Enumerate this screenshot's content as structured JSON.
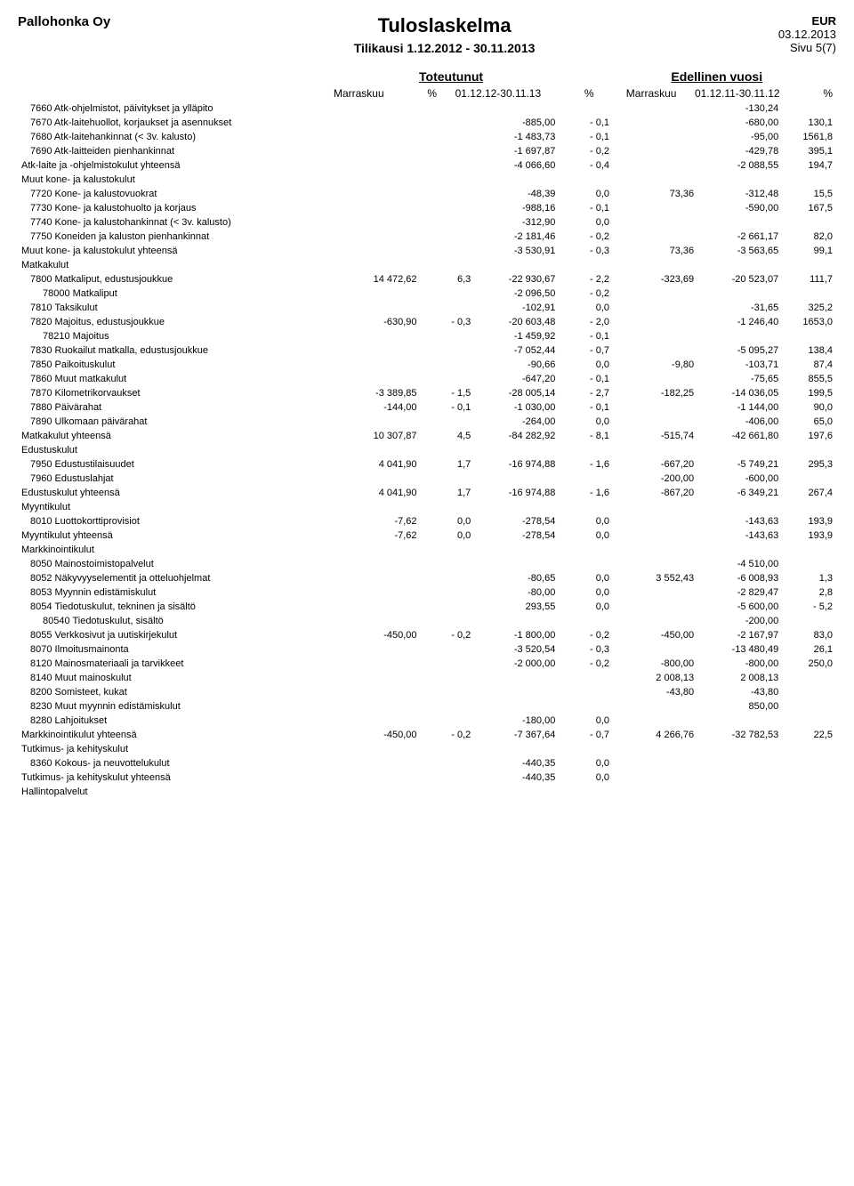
{
  "meta": {
    "company": "Pallohonka Oy",
    "title": "Tuloslaskelma",
    "period": "Tilikausi 1.12.2012 - 30.11.2013",
    "currency": "EUR",
    "date": "03.12.2013",
    "page": "Sivu 5(7)",
    "group_current": "Toteutunut",
    "group_prev": "Edellinen vuosi",
    "sub_c1": "Marraskuu",
    "sub_c2": "%",
    "sub_c3": "01.12.12-30.11.13",
    "sub_c4": "%",
    "sub_p1": "Marraskuu",
    "sub_p2": "01.12.11-30.11.12",
    "sub_p3": "%"
  },
  "style": {
    "background": "#ffffff",
    "text_color": "#000000",
    "font_family": "Arial",
    "title_fontsize": 22,
    "body_fontsize": 11
  },
  "rows": [
    {
      "indent": 1,
      "label": "7660 Atk-ohjelmistot, päivitykset ja ylläpito",
      "c1": "",
      "c2": "",
      "c3": "",
      "c4": "",
      "p1": "",
      "p2": "-130,24",
      "p3": ""
    },
    {
      "indent": 1,
      "label": "7670 Atk-laitehuollot, korjaukset ja asennukset",
      "c1": "",
      "c2": "",
      "c3": "-885,00",
      "c4": "- 0,1",
      "p1": "",
      "p2": "-680,00",
      "p3": "130,1"
    },
    {
      "indent": 1,
      "label": "7680 Atk-laitehankinnat (< 3v. kalusto)",
      "c1": "",
      "c2": "",
      "c3": "-1 483,73",
      "c4": "- 0,1",
      "p1": "",
      "p2": "-95,00",
      "p3": "1561,8"
    },
    {
      "indent": 1,
      "label": "7690 Atk-laitteiden pienhankinnat",
      "c1": "",
      "c2": "",
      "c3": "-1 697,87",
      "c4": "- 0,2",
      "p1": "",
      "p2": "-429,78",
      "p3": "395,1"
    },
    {
      "indent": 0,
      "label": "Atk-laite ja -ohjelmistokulut yhteensä",
      "c1": "",
      "c2": "",
      "c3": "-4 066,60",
      "c4": "- 0,4",
      "p1": "",
      "p2": "-2 088,55",
      "p3": "194,7"
    },
    {
      "indent": 0,
      "label": "Muut kone- ja kalustokulut",
      "c1": "",
      "c2": "",
      "c3": "",
      "c4": "",
      "p1": "",
      "p2": "",
      "p3": ""
    },
    {
      "indent": 1,
      "label": "7720 Kone- ja kalustovuokrat",
      "c1": "",
      "c2": "",
      "c3": "-48,39",
      "c4": "0,0",
      "p1": "73,36",
      "p2": "-312,48",
      "p3": "15,5"
    },
    {
      "indent": 1,
      "label": "7730 Kone- ja kalustohuolto ja korjaus",
      "c1": "",
      "c2": "",
      "c3": "-988,16",
      "c4": "- 0,1",
      "p1": "",
      "p2": "-590,00",
      "p3": "167,5"
    },
    {
      "indent": 1,
      "label": "7740 Kone- ja kalustohankinnat (< 3v. kalusto)",
      "c1": "",
      "c2": "",
      "c3": "-312,90",
      "c4": "0,0",
      "p1": "",
      "p2": "",
      "p3": ""
    },
    {
      "indent": 1,
      "label": "7750 Koneiden ja kaluston pienhankinnat",
      "c1": "",
      "c2": "",
      "c3": "-2 181,46",
      "c4": "- 0,2",
      "p1": "",
      "p2": "-2 661,17",
      "p3": "82,0"
    },
    {
      "indent": 0,
      "label": "Muut kone- ja kalustokulut yhteensä",
      "c1": "",
      "c2": "",
      "c3": "-3 530,91",
      "c4": "- 0,3",
      "p1": "73,36",
      "p2": "-3 563,65",
      "p3": "99,1"
    },
    {
      "indent": 0,
      "label": "Matkakulut",
      "c1": "",
      "c2": "",
      "c3": "",
      "c4": "",
      "p1": "",
      "p2": "",
      "p3": ""
    },
    {
      "indent": 1,
      "label": "7800 Matkaliput, edustusjoukkue",
      "c1": "14 472,62",
      "c2": "6,3",
      "c3": "-22 930,67",
      "c4": "- 2,2",
      "p1": "-323,69",
      "p2": "-20 523,07",
      "p3": "111,7"
    },
    {
      "indent": 2,
      "label": "78000 Matkaliput",
      "c1": "",
      "c2": "",
      "c3": "-2 096,50",
      "c4": "- 0,2",
      "p1": "",
      "p2": "",
      "p3": ""
    },
    {
      "indent": 1,
      "label": "7810 Taksikulut",
      "c1": "",
      "c2": "",
      "c3": "-102,91",
      "c4": "0,0",
      "p1": "",
      "p2": "-31,65",
      "p3": "325,2"
    },
    {
      "indent": 1,
      "label": "7820 Majoitus, edustusjoukkue",
      "c1": "-630,90",
      "c2": "- 0,3",
      "c3": "-20 603,48",
      "c4": "- 2,0",
      "p1": "",
      "p2": "-1 246,40",
      "p3": "1653,0"
    },
    {
      "indent": 2,
      "label": "78210 Majoitus",
      "c1": "",
      "c2": "",
      "c3": "-1 459,92",
      "c4": "- 0,1",
      "p1": "",
      "p2": "",
      "p3": ""
    },
    {
      "indent": 1,
      "label": "7830 Ruokailut matkalla, edustusjoukkue",
      "c1": "",
      "c2": "",
      "c3": "-7 052,44",
      "c4": "- 0,7",
      "p1": "",
      "p2": "-5 095,27",
      "p3": "138,4"
    },
    {
      "indent": 1,
      "label": "7850 Paikoituskulut",
      "c1": "",
      "c2": "",
      "c3": "-90,66",
      "c4": "0,0",
      "p1": "-9,80",
      "p2": "-103,71",
      "p3": "87,4"
    },
    {
      "indent": 1,
      "label": "7860 Muut matkakulut",
      "c1": "",
      "c2": "",
      "c3": "-647,20",
      "c4": "- 0,1",
      "p1": "",
      "p2": "-75,65",
      "p3": "855,5"
    },
    {
      "indent": 1,
      "label": "7870 Kilometrikorvaukset",
      "c1": "-3 389,85",
      "c2": "- 1,5",
      "c3": "-28 005,14",
      "c4": "- 2,7",
      "p1": "-182,25",
      "p2": "-14 036,05",
      "p3": "199,5"
    },
    {
      "indent": 1,
      "label": "7880 Päivärahat",
      "c1": "-144,00",
      "c2": "- 0,1",
      "c3": "-1 030,00",
      "c4": "- 0,1",
      "p1": "",
      "p2": "-1 144,00",
      "p3": "90,0"
    },
    {
      "indent": 1,
      "label": "7890 Ulkomaan päivärahat",
      "c1": "",
      "c2": "",
      "c3": "-264,00",
      "c4": "0,0",
      "p1": "",
      "p2": "-406,00",
      "p3": "65,0"
    },
    {
      "indent": 0,
      "label": "Matkakulut yhteensä",
      "c1": "10 307,87",
      "c2": "4,5",
      "c3": "-84 282,92",
      "c4": "- 8,1",
      "p1": "-515,74",
      "p2": "-42 661,80",
      "p3": "197,6"
    },
    {
      "indent": 0,
      "label": "Edustuskulut",
      "c1": "",
      "c2": "",
      "c3": "",
      "c4": "",
      "p1": "",
      "p2": "",
      "p3": ""
    },
    {
      "indent": 1,
      "label": "7950 Edustustilaisuudet",
      "c1": "4 041,90",
      "c2": "1,7",
      "c3": "-16 974,88",
      "c4": "- 1,6",
      "p1": "-667,20",
      "p2": "-5 749,21",
      "p3": "295,3"
    },
    {
      "indent": 1,
      "label": "7960 Edustuslahjat",
      "c1": "",
      "c2": "",
      "c3": "",
      "c4": "",
      "p1": "-200,00",
      "p2": "-600,00",
      "p3": ""
    },
    {
      "indent": 0,
      "label": "Edustuskulut yhteensä",
      "c1": "4 041,90",
      "c2": "1,7",
      "c3": "-16 974,88",
      "c4": "- 1,6",
      "p1": "-867,20",
      "p2": "-6 349,21",
      "p3": "267,4"
    },
    {
      "indent": 0,
      "label": "Myyntikulut",
      "c1": "",
      "c2": "",
      "c3": "",
      "c4": "",
      "p1": "",
      "p2": "",
      "p3": ""
    },
    {
      "indent": 1,
      "label": "8010 Luottokorttiprovisiot",
      "c1": "-7,62",
      "c2": "0,0",
      "c3": "-278,54",
      "c4": "0,0",
      "p1": "",
      "p2": "-143,63",
      "p3": "193,9"
    },
    {
      "indent": 0,
      "label": "Myyntikulut yhteensä",
      "c1": "-7,62",
      "c2": "0,0",
      "c3": "-278,54",
      "c4": "0,0",
      "p1": "",
      "p2": "-143,63",
      "p3": "193,9"
    },
    {
      "indent": 0,
      "label": "Markkinointikulut",
      "c1": "",
      "c2": "",
      "c3": "",
      "c4": "",
      "p1": "",
      "p2": "",
      "p3": ""
    },
    {
      "indent": 1,
      "label": "8050 Mainostoimistopalvelut",
      "c1": "",
      "c2": "",
      "c3": "",
      "c4": "",
      "p1": "",
      "p2": "-4 510,00",
      "p3": ""
    },
    {
      "indent": 1,
      "label": "8052 Näkyvyyselementit ja otteluohjelmat",
      "c1": "",
      "c2": "",
      "c3": "-80,65",
      "c4": "0,0",
      "p1": "3 552,43",
      "p2": "-6 008,93",
      "p3": "1,3"
    },
    {
      "indent": 1,
      "label": "8053 Myynnin edistämiskulut",
      "c1": "",
      "c2": "",
      "c3": "-80,00",
      "c4": "0,0",
      "p1": "",
      "p2": "-2 829,47",
      "p3": "2,8"
    },
    {
      "indent": 1,
      "label": "8054 Tiedotuskulut, tekninen ja sisältö",
      "c1": "",
      "c2": "",
      "c3": "293,55",
      "c4": "0,0",
      "p1": "",
      "p2": "-5 600,00",
      "p3": "- 5,2"
    },
    {
      "indent": 2,
      "label": "80540 Tiedotuskulut, sisältö",
      "c1": "",
      "c2": "",
      "c3": "",
      "c4": "",
      "p1": "",
      "p2": "-200,00",
      "p3": ""
    },
    {
      "indent": 1,
      "label": "8055 Verkkosivut ja uutiskirjekulut",
      "c1": "-450,00",
      "c2": "- 0,2",
      "c3": "-1 800,00",
      "c4": "- 0,2",
      "p1": "-450,00",
      "p2": "-2 167,97",
      "p3": "83,0"
    },
    {
      "indent": 1,
      "label": "8070 Ilmoitusmainonta",
      "c1": "",
      "c2": "",
      "c3": "-3 520,54",
      "c4": "- 0,3",
      "p1": "",
      "p2": "-13 480,49",
      "p3": "26,1"
    },
    {
      "indent": 1,
      "label": "8120 Mainosmateriaali ja tarvikkeet",
      "c1": "",
      "c2": "",
      "c3": "-2 000,00",
      "c4": "- 0,2",
      "p1": "-800,00",
      "p2": "-800,00",
      "p3": "250,0"
    },
    {
      "indent": 1,
      "label": "8140 Muut mainoskulut",
      "c1": "",
      "c2": "",
      "c3": "",
      "c4": "",
      "p1": "2 008,13",
      "p2": "2 008,13",
      "p3": ""
    },
    {
      "indent": 1,
      "label": "8200 Somisteet, kukat",
      "c1": "",
      "c2": "",
      "c3": "",
      "c4": "",
      "p1": "-43,80",
      "p2": "-43,80",
      "p3": ""
    },
    {
      "indent": 1,
      "label": "8230 Muut myynnin edistämiskulut",
      "c1": "",
      "c2": "",
      "c3": "",
      "c4": "",
      "p1": "",
      "p2": "850,00",
      "p3": ""
    },
    {
      "indent": 1,
      "label": "8280 Lahjoitukset",
      "c1": "",
      "c2": "",
      "c3": "-180,00",
      "c4": "0,0",
      "p1": "",
      "p2": "",
      "p3": ""
    },
    {
      "indent": 0,
      "label": "Markkinointikulut yhteensä",
      "c1": "-450,00",
      "c2": "- 0,2",
      "c3": "-7 367,64",
      "c4": "- 0,7",
      "p1": "4 266,76",
      "p2": "-32 782,53",
      "p3": "22,5"
    },
    {
      "indent": 0,
      "label": "Tutkimus- ja kehityskulut",
      "c1": "",
      "c2": "",
      "c3": "",
      "c4": "",
      "p1": "",
      "p2": "",
      "p3": ""
    },
    {
      "indent": 1,
      "label": "8360 Kokous- ja neuvottelukulut",
      "c1": "",
      "c2": "",
      "c3": "-440,35",
      "c4": "0,0",
      "p1": "",
      "p2": "",
      "p3": ""
    },
    {
      "indent": 0,
      "label": "Tutkimus- ja kehityskulut yhteensä",
      "c1": "",
      "c2": "",
      "c3": "-440,35",
      "c4": "0,0",
      "p1": "",
      "p2": "",
      "p3": ""
    },
    {
      "indent": 0,
      "label": "Hallintopalvelut",
      "c1": "",
      "c2": "",
      "c3": "",
      "c4": "",
      "p1": "",
      "p2": "",
      "p3": ""
    }
  ]
}
